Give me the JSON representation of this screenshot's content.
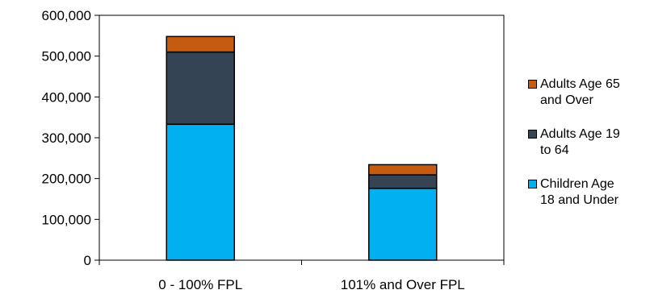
{
  "chart_data": {
    "type": "bar",
    "stacked": true,
    "categories": [
      "0 - 100% FPL",
      "101% and Over FPL"
    ],
    "series": [
      {
        "name": "Children Age 18 and Under",
        "color": "#00B0F0",
        "values": [
          333000,
          176000
        ]
      },
      {
        "name": "Adults Age 19 to 64",
        "color": "#344454",
        "values": [
          177000,
          33000
        ]
      },
      {
        "name": "Adults Age 65 and Over",
        "color": "#C55A11",
        "values": [
          38000,
          25000
        ]
      }
    ],
    "y_ticks": [
      "0",
      "100,000",
      "200,000",
      "300,000",
      "400,000",
      "500,000",
      "600,000"
    ],
    "ylim": [
      0,
      600000
    ],
    "grid": false,
    "legend_position": "right",
    "legend": [
      {
        "label_lines": [
          "Adults Age 65",
          "and Over"
        ],
        "color": "#C55A11"
      },
      {
        "label_lines": [
          "Adults Age 19",
          "to 64"
        ],
        "color": "#344454"
      },
      {
        "label_lines": [
          "Children Age",
          "18 and Under"
        ],
        "color": "#00B0F0"
      }
    ]
  }
}
